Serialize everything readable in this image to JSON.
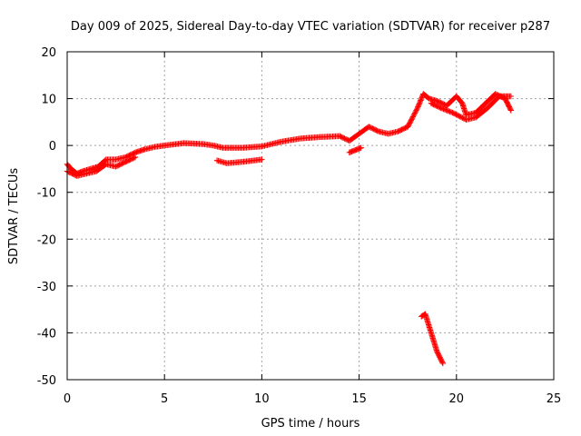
{
  "chart_data": {
    "type": "scatter",
    "title": "Day 009 of 2025, Sidereal Day-to-day VTEC variation (SDTVAR) for receiver p287",
    "xlabel": "GPS time / hours",
    "ylabel": "SDTVAR / TECUs",
    "xlim": [
      0,
      25
    ],
    "ylim": [
      -50,
      20
    ],
    "xticks": [
      0,
      5,
      10,
      15,
      20,
      25
    ],
    "yticks": [
      20,
      10,
      0,
      -10,
      -20,
      -30,
      -40,
      -50
    ],
    "xtick_labels": [
      "0",
      "5",
      "10",
      "15",
      "20",
      "25"
    ],
    "ytick_labels": [
      "20",
      "10",
      "0",
      "-10",
      "-20",
      "-30",
      "-40",
      "-50"
    ],
    "grid": true,
    "marker": "plus",
    "color": "#ff0000",
    "series": [
      {
        "name": "main trace (piecewise-linear path of the dense points)",
        "path": [
          [
            0.0,
            -4.0
          ],
          [
            0.2,
            -5.0
          ],
          [
            0.5,
            -6.0
          ],
          [
            0.8,
            -5.5
          ],
          [
            1.2,
            -5.0
          ],
          [
            1.6,
            -4.5
          ],
          [
            2.0,
            -3.0
          ],
          [
            2.5,
            -3.0
          ],
          [
            3.0,
            -2.5
          ],
          [
            3.5,
            -1.5
          ],
          [
            4.0,
            -0.8
          ],
          [
            4.5,
            -0.3
          ],
          [
            5.0,
            0.0
          ],
          [
            6.0,
            0.5
          ],
          [
            7.0,
            0.3
          ],
          [
            7.5,
            0.0
          ],
          [
            8.0,
            -0.5
          ],
          [
            9.0,
            -0.5
          ],
          [
            10.0,
            -0.2
          ],
          [
            11.0,
            0.8
          ],
          [
            12.0,
            1.5
          ],
          [
            13.0,
            1.8
          ],
          [
            14.0,
            2.0
          ],
          [
            14.5,
            1.0
          ],
          [
            15.0,
            2.5
          ],
          [
            15.5,
            4.0
          ],
          [
            16.0,
            3.0
          ],
          [
            16.5,
            2.5
          ],
          [
            17.0,
            3.0
          ],
          [
            17.5,
            4.0
          ],
          [
            18.0,
            8.0
          ],
          [
            18.3,
            11.0
          ],
          [
            18.6,
            10.0
          ],
          [
            19.0,
            9.5
          ],
          [
            19.5,
            8.5
          ],
          [
            20.0,
            10.5
          ],
          [
            20.3,
            9.0
          ],
          [
            20.5,
            6.5
          ],
          [
            21.0,
            7.0
          ],
          [
            21.5,
            9.0
          ],
          [
            22.0,
            11.0
          ],
          [
            22.5,
            10.0
          ],
          [
            22.8,
            7.5
          ]
        ]
      },
      {
        "name": "secondary lower branch",
        "path": [
          [
            0.0,
            -5.5
          ],
          [
            0.5,
            -6.5
          ],
          [
            1.0,
            -6.0
          ],
          [
            1.5,
            -5.5
          ],
          [
            2.0,
            -4.0
          ],
          [
            2.5,
            -4.5
          ],
          [
            3.0,
            -3.5
          ],
          [
            3.5,
            -2.5
          ]
        ]
      },
      {
        "name": "lower branch near hours 7.7 to 10",
        "path": [
          [
            7.7,
            -3.2
          ],
          [
            8.2,
            -3.8
          ],
          [
            9.0,
            -3.5
          ],
          [
            10.0,
            -3.0
          ]
        ]
      },
      {
        "name": "upper band near hours 18 to 23",
        "path": [
          [
            18.7,
            9.0
          ],
          [
            19.2,
            8.0
          ],
          [
            19.8,
            7.0
          ],
          [
            20.5,
            5.5
          ],
          [
            21.0,
            6.0
          ],
          [
            21.6,
            8.0
          ],
          [
            22.2,
            10.5
          ],
          [
            22.8,
            10.5
          ]
        ]
      },
      {
        "name": "outlier drop",
        "path": [
          [
            18.2,
            -36.5
          ],
          [
            18.4,
            -36.0
          ],
          [
            18.7,
            -40.0
          ],
          [
            19.0,
            -44.0
          ],
          [
            19.3,
            -46.5
          ]
        ]
      },
      {
        "name": "isolated points",
        "path": [
          [
            14.5,
            -1.5
          ],
          [
            14.8,
            -1.0
          ],
          [
            15.1,
            -0.5
          ]
        ]
      }
    ]
  }
}
